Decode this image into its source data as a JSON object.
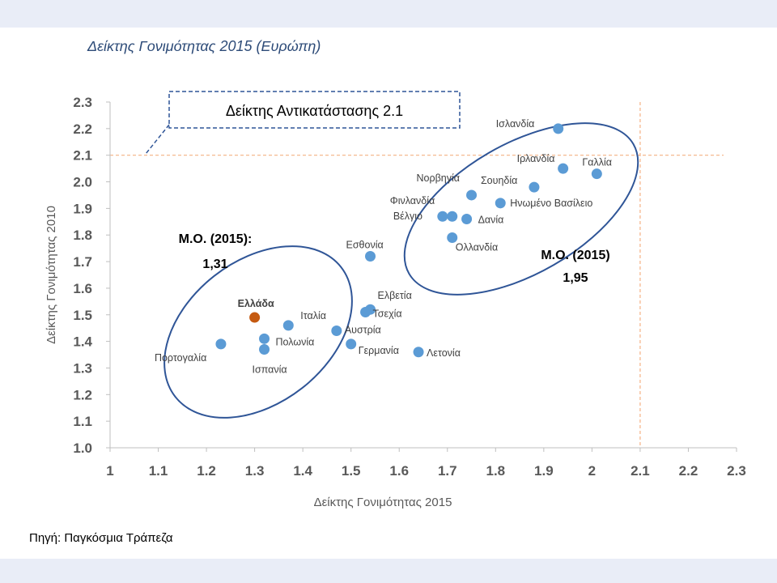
{
  "title": "Δείκτης Γονιμότητας 2015 (Ευρώπη)",
  "source": "Πηγή: Παγκόσμια Τράπεζα",
  "chart_data": {
    "type": "scatter",
    "title": "Δείκτης Γονιμότητας 2015 (Ευρώπη)",
    "xlabel": "Δείκτης Γονιμότητας 2015",
    "ylabel": "Δείκτης Γονιμότητας 2010",
    "xlim": [
      1.0,
      2.3
    ],
    "ylim": [
      1.0,
      2.3
    ],
    "x_ticks": [
      "1",
      "1.1",
      "1.2",
      "1.3",
      "1.4",
      "1.5",
      "1.6",
      "1.7",
      "1.8",
      "1.9",
      "2",
      "2.1",
      "2.2",
      "2.3"
    ],
    "y_ticks": [
      "1.0",
      "1.1",
      "1.2",
      "1.3",
      "1.4",
      "1.5",
      "1.6",
      "1.7",
      "1.8",
      "1.9",
      "2.0",
      "2.1",
      "2.2",
      "2.3"
    ],
    "grid": false,
    "point_color": "#5b9bd5",
    "highlight_color": "#c55a11",
    "points": [
      {
        "label": "Ισλανδία",
        "x": 1.93,
        "y": 2.2
      },
      {
        "label": "Γαλλία",
        "x": 2.01,
        "y": 2.03
      },
      {
        "label": "Ιρλανδία",
        "x": 1.94,
        "y": 2.05
      },
      {
        "label": "Σουηδία",
        "x": 1.88,
        "y": 1.98
      },
      {
        "label": "Ηνωμένο Βασίλειο",
        "x": 1.81,
        "y": 1.92
      },
      {
        "label": "Νορβηγία",
        "x": 1.75,
        "y": 1.95
      },
      {
        "label": "Φινλανδία",
        "x": 1.71,
        "y": 1.87
      },
      {
        "label": "Βέλγιο",
        "x": 1.69,
        "y": 1.87
      },
      {
        "label": "Δανία",
        "x": 1.74,
        "y": 1.86
      },
      {
        "label": "Ολλανδία",
        "x": 1.71,
        "y": 1.79
      },
      {
        "label": "Εσθονία",
        "x": 1.54,
        "y": 1.72
      },
      {
        "label": "Ελβετία",
        "x": 1.54,
        "y": 1.52
      },
      {
        "label": "Τσεχία",
        "x": 1.53,
        "y": 1.51
      },
      {
        "label": "Αυστρία",
        "x": 1.47,
        "y": 1.44
      },
      {
        "label": "Γερμανία",
        "x": 1.5,
        "y": 1.39
      },
      {
        "label": "Λετονία",
        "x": 1.64,
        "y": 1.36
      },
      {
        "label": "Ελλάδα",
        "x": 1.3,
        "y": 1.49,
        "highlight": true
      },
      {
        "label": "Ιταλία",
        "x": 1.37,
        "y": 1.46
      },
      {
        "label": "Πολωνία",
        "x": 1.32,
        "y": 1.41
      },
      {
        "label": "Ισπανία",
        "x": 1.32,
        "y": 1.37
      },
      {
        "label": "Πορτογαλία",
        "x": 1.23,
        "y": 1.39
      }
    ],
    "reference_line": {
      "label": "Δείκτης Αντικατάστασης 2.1",
      "value": 2.1
    },
    "annotations": [
      {
        "title": "Μ.Ο. (2015):",
        "value": "1,31"
      },
      {
        "title": "Μ.Ο. (2015)",
        "value": "1,95"
      }
    ]
  }
}
